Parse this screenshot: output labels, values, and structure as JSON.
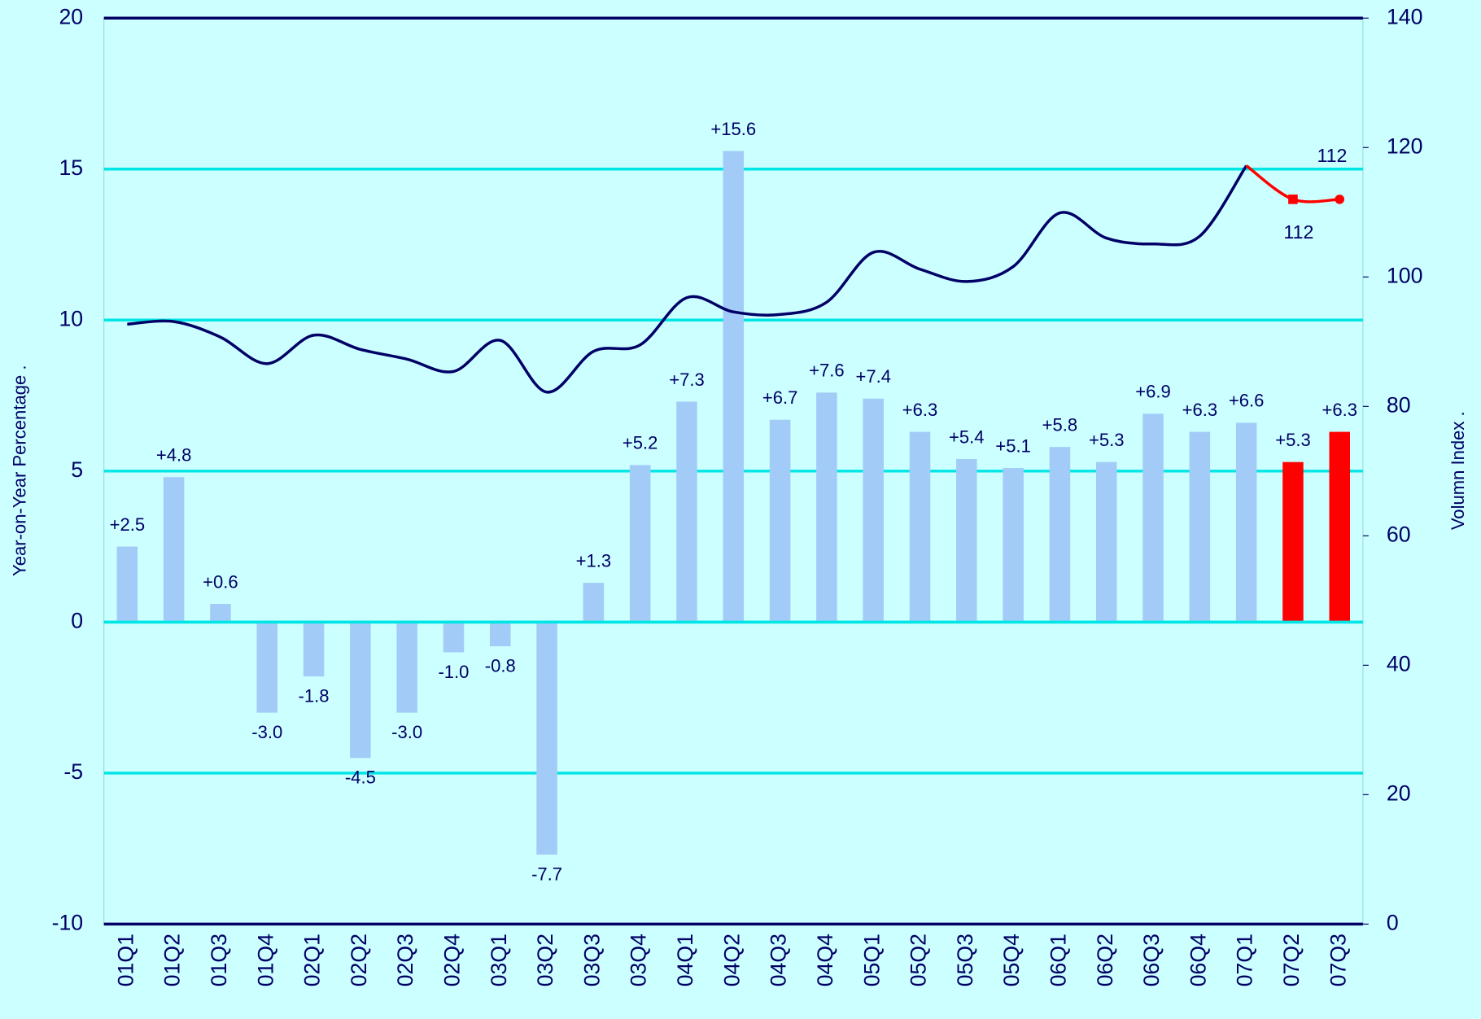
{
  "chart_data": {
    "type": "bar",
    "y_label": "Year-on-Year Percentage .",
    "y2_label": "Volumn Index .",
    "categories": [
      "01Q1",
      "01Q2",
      "01Q3",
      "01Q4",
      "02Q1",
      "02Q2",
      "02Q3",
      "02Q4",
      "03Q1",
      "03Q2",
      "03Q3",
      "03Q4",
      "04Q1",
      "04Q2",
      "04Q3",
      "04Q4",
      "05Q1",
      "05Q2",
      "05Q3",
      "05Q4",
      "06Q1",
      "06Q2",
      "06Q3",
      "06Q4",
      "07Q1",
      "07Q2",
      "07Q3"
    ],
    "values": [
      2.5,
      4.8,
      0.6,
      -3.0,
      -1.8,
      -4.5,
      -3.0,
      -1.0,
      -0.8,
      -7.7,
      1.3,
      5.2,
      7.3,
      15.6,
      6.7,
      7.6,
      7.4,
      6.3,
      5.4,
      5.1,
      5.8,
      5.3,
      6.9,
      6.3,
      6.6,
      5.3,
      6.3
    ],
    "value_labels": [
      "+2.5",
      "+4.8",
      "+0.6",
      "-3.0",
      "-1.8",
      "-4.5",
      "-3.0",
      "-1.0",
      "-0.8",
      "-7.7",
      "+1.3",
      "+5.2",
      "+7.3",
      "+15.6",
      "+6.7",
      "+7.6",
      "+7.4",
      "+6.3",
      "+5.4",
      "+5.1",
      "+5.8",
      "+5.3",
      "+6.9",
      "+6.3",
      "+6.6",
      "+5.3",
      "+6.3"
    ],
    "colors": [
      "#a3cbf8",
      "#a3cbf8",
      "#a3cbf8",
      "#a3cbf8",
      "#a3cbf8",
      "#a3cbf8",
      "#a3cbf8",
      "#a3cbf8",
      "#a3cbf8",
      "#a3cbf8",
      "#a3cbf8",
      "#a3cbf8",
      "#a3cbf8",
      "#a3cbf8",
      "#a3cbf8",
      "#a3cbf8",
      "#a3cbf8",
      "#a3cbf8",
      "#a3cbf8",
      "#a3cbf8",
      "#a3cbf8",
      "#a3cbf8",
      "#a3cbf8",
      "#a3cbf8",
      "#a3cbf8",
      "#ff0000",
      "#ff0000"
    ],
    "series": [
      {
        "axis": "y2",
        "color": "#000066",
        "values": [
          92.7,
          93.1,
          90.7,
          86.6,
          91.0,
          88.8,
          87.3,
          85.4,
          90.2,
          82.2,
          88.5,
          89.5,
          96.8,
          94.6,
          94.2,
          96.1,
          103.8,
          101.2,
          99.3,
          101.6,
          109.9,
          106.0,
          105.1,
          106.3,
          117.2,
          null,
          null
        ]
      },
      {
        "axis": "y2",
        "color": "#ff0000",
        "values": [
          null,
          null,
          null,
          null,
          null,
          null,
          null,
          null,
          null,
          null,
          null,
          null,
          null,
          null,
          null,
          null,
          null,
          null,
          null,
          null,
          null,
          null,
          null,
          null,
          117.2,
          112,
          112
        ],
        "value_labels": [
          null,
          null,
          null,
          null,
          null,
          null,
          null,
          null,
          null,
          null,
          null,
          null,
          null,
          null,
          null,
          null,
          null,
          null,
          null,
          null,
          null,
          null,
          null,
          null,
          null,
          "112",
          "112"
        ]
      }
    ],
    "ylim": [
      -10,
      20
    ],
    "yticks": [
      -10,
      -5,
      0,
      5,
      10,
      15,
      20
    ],
    "y2lim": [
      0,
      140
    ],
    "y2ticks": [
      0,
      20,
      40,
      60,
      80,
      100,
      120,
      140
    ],
    "grid": true
  }
}
